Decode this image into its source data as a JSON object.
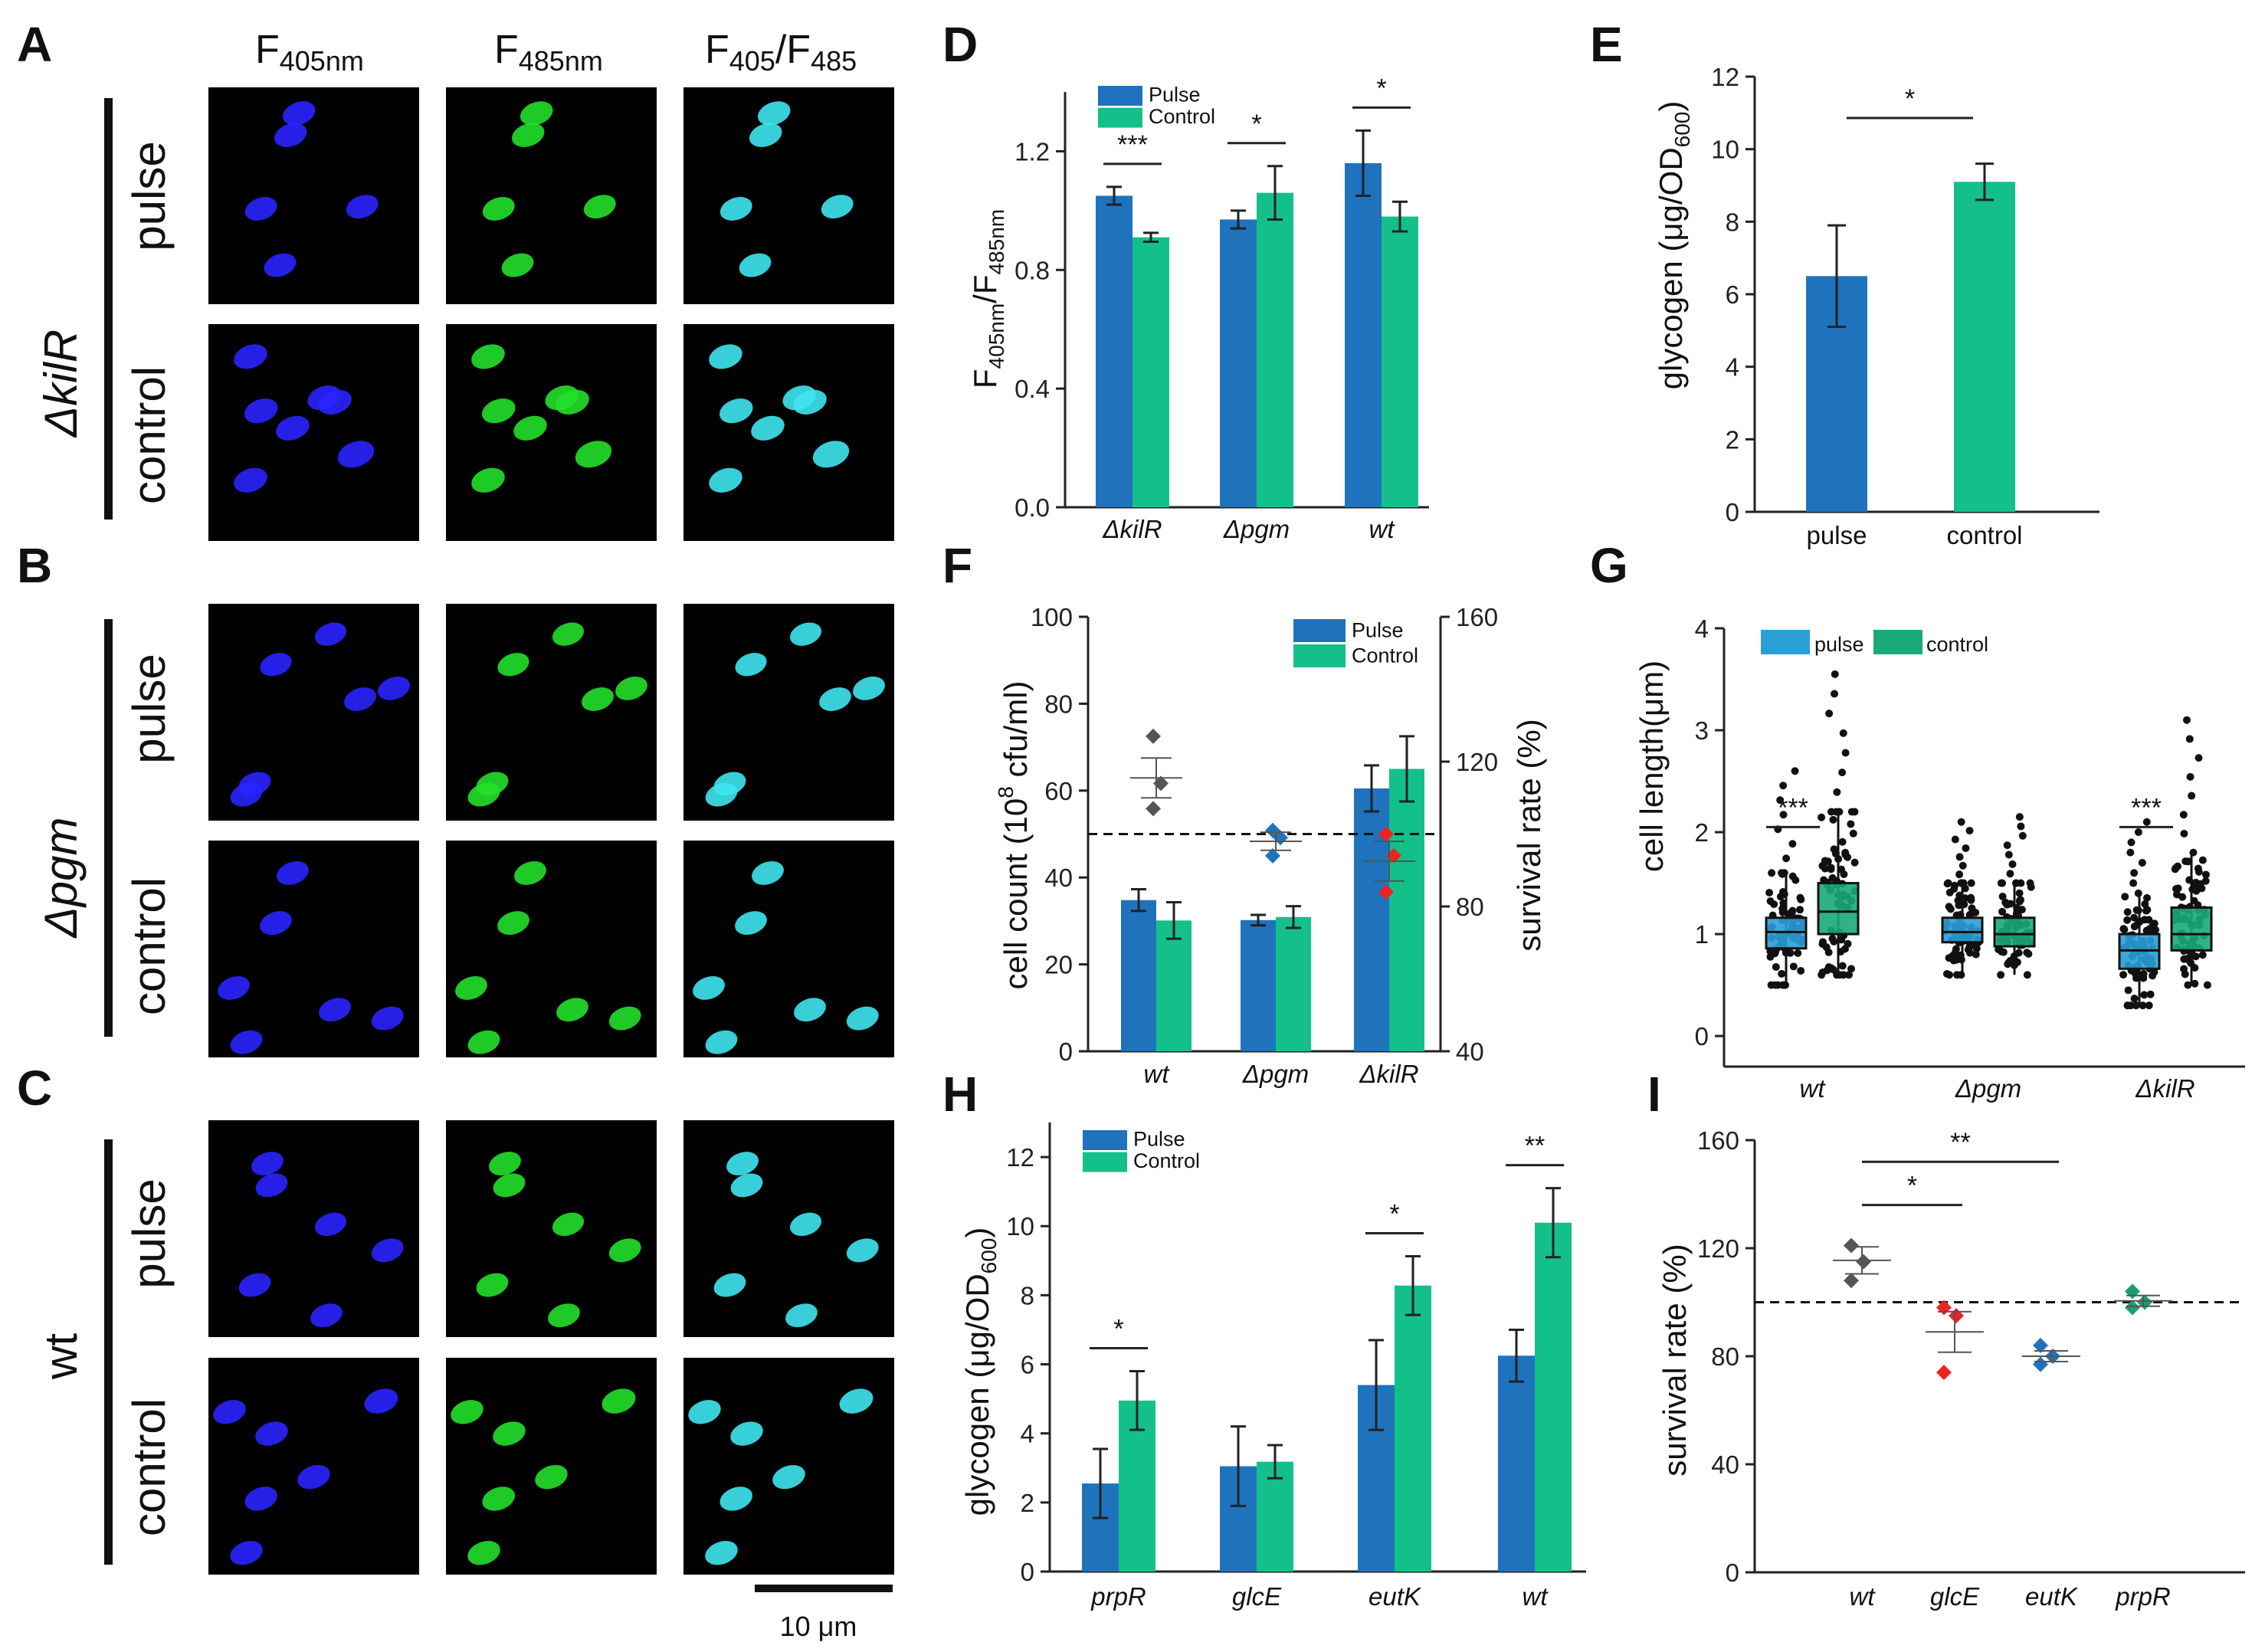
{
  "colors": {
    "pulse": "#1f73bd",
    "control": "#14c08a",
    "g_pulse": "#2a9fd6",
    "g_control": "#1aaa7a",
    "blue": "#2a24ff",
    "green": "#22e02a",
    "cyan": "#3ee6f0",
    "gray": "#555555",
    "red": "#ee2222",
    "teal": "#1aa070"
  },
  "micrograph": {
    "panel_labels": [
      "A",
      "B",
      "C"
    ],
    "columns": [
      "F",
      "F",
      "F",
      "/F"
    ],
    "col_sub": [
      "405nm",
      "485nm",
      "405",
      "485"
    ],
    "strains": [
      "ΔkilR",
      "Δpgm",
      "wt"
    ],
    "conditions": [
      "pulse",
      "control"
    ],
    "scale_bar": "10 μm"
  },
  "chart_data": [
    {
      "id": "D",
      "type": "bar",
      "panel_label": "D",
      "ylabel_main": "F",
      "ylabel_sub1": "405nm",
      "ylabel_slash": "/F",
      "ylabel_sub2": "485nm",
      "categories": [
        "ΔkilR",
        "Δpgm",
        "wt"
      ],
      "ylim": [
        0,
        1.4
      ],
      "yticks": [
        "0.0",
        "0.4",
        "0.8",
        "1.2"
      ],
      "ytick_values": [
        0,
        0.4,
        0.8,
        1.2
      ],
      "legend": [
        "Pulse",
        "Control"
      ],
      "series": [
        {
          "name": "Pulse",
          "values": [
            1.05,
            0.97,
            1.16
          ],
          "err": [
            0.03,
            0.03,
            0.11
          ]
        },
        {
          "name": "Control",
          "values": [
            0.91,
            1.06,
            0.98
          ],
          "err": [
            0.015,
            0.09,
            0.05
          ]
        }
      ],
      "significance": [
        "***",
        "*",
        "*"
      ]
    },
    {
      "id": "E",
      "type": "bar",
      "panel_label": "E",
      "ylabel_main": "glycogen (μg/OD",
      "ylabel_sub": "600",
      "ylabel_end": ")",
      "categories": [
        "pulse",
        "control"
      ],
      "ylim": [
        0,
        12
      ],
      "yticks": [
        "0",
        "2",
        "4",
        "6",
        "8",
        "10",
        "12"
      ],
      "ytick_values": [
        0,
        2,
        4,
        6,
        8,
        10,
        12
      ],
      "values": [
        6.5,
        9.1
      ],
      "err": [
        1.4,
        0.5
      ],
      "significance": [
        "*"
      ]
    },
    {
      "id": "F",
      "type": "bar",
      "panel_label": "F",
      "ylabel_left_a": "cell count (10",
      "ylabel_left_sup": "8",
      "ylabel_left_b": " cfu/ml)",
      "ylabel_right": "survival rate (%)",
      "categories": [
        "wt",
        "Δpgm",
        "ΔkilR"
      ],
      "ylim": [
        0,
        100
      ],
      "yticks": [
        "0",
        "20",
        "40",
        "60",
        "80",
        "100"
      ],
      "ytick_values": [
        0,
        20,
        40,
        60,
        80,
        100
      ],
      "y2lim": [
        40,
        160
      ],
      "y2ticks": [
        "40",
        "80",
        "120",
        "160"
      ],
      "y2tick_values": [
        40,
        80,
        120,
        160
      ],
      "legend": [
        "Pulse",
        "Control"
      ],
      "series": [
        {
          "name": "Pulse",
          "values": [
            34.8,
            30.2,
            60.5
          ],
          "err": [
            2.5,
            1.2,
            5.3
          ]
        },
        {
          "name": "Control",
          "values": [
            30.1,
            30.9,
            65.0
          ],
          "err": [
            4.2,
            2.5,
            7.5
          ]
        }
      ],
      "survival": [
        {
          "points": [
            127,
            114,
            107
          ],
          "mean": 115.5,
          "sem": 5.5
        },
        {
          "points": [
            101,
            99,
            94
          ],
          "mean": 98,
          "sem": 2.5
        },
        {
          "points": [
            100,
            94,
            84
          ],
          "mean": 92.5,
          "sem": 5.5
        }
      ],
      "reference_line": 100
    },
    {
      "id": "G",
      "type": "box",
      "panel_label": "G",
      "ylabel": "cell length(μm)",
      "categories": [
        "wt",
        "Δpgm",
        "ΔkilR"
      ],
      "ylim": [
        -0.3,
        4
      ],
      "yticks": [
        "0",
        "1",
        "2",
        "3",
        "4"
      ],
      "ytick_values": [
        0,
        1,
        2,
        3,
        4
      ],
      "legend": [
        "pulse",
        "control"
      ],
      "boxes": [
        [
          {
            "q1": 0.86,
            "med": 1.02,
            "q3": 1.16,
            "lo": 0.5,
            "hi": 1.6,
            "max": 2.6
          },
          {
            "q1": 1.0,
            "med": 1.22,
            "q3": 1.5,
            "lo": 0.6,
            "hi": 2.2,
            "max": 3.55
          }
        ],
        [
          {
            "q1": 0.92,
            "med": 1.02,
            "q3": 1.16,
            "lo": 0.6,
            "hi": 1.5,
            "max": 2.1
          },
          {
            "q1": 0.88,
            "med": 1.0,
            "q3": 1.16,
            "lo": 0.6,
            "hi": 1.5,
            "max": 2.15
          }
        ],
        [
          {
            "q1": 0.66,
            "med": 0.84,
            "q3": 1.0,
            "lo": 0.3,
            "hi": 1.4,
            "max": 2.1
          },
          {
            "q1": 0.84,
            "med": 1.0,
            "q3": 1.26,
            "lo": 0.5,
            "hi": 1.8,
            "max": 3.1
          }
        ]
      ],
      "significance": [
        "***",
        "",
        "***"
      ]
    },
    {
      "id": "H",
      "type": "bar",
      "panel_label": "H",
      "ylabel_main": "glycogen (μg/OD",
      "ylabel_sub": "600",
      "ylabel_end": ")",
      "categories": [
        "prpR",
        "glcE",
        "eutK",
        "wt"
      ],
      "ylim": [
        0,
        13
      ],
      "yticks": [
        "0",
        "2",
        "4",
        "6",
        "8",
        "10",
        "12"
      ],
      "ytick_values": [
        0,
        2,
        4,
        6,
        8,
        10,
        12
      ],
      "legend": [
        "Pulse",
        "Control"
      ],
      "series": [
        {
          "name": "Pulse",
          "values": [
            2.55,
            3.05,
            5.4,
            6.25
          ],
          "err": [
            1.0,
            1.15,
            1.3,
            0.75
          ]
        },
        {
          "name": "Control",
          "values": [
            4.95,
            3.18,
            8.28,
            10.1
          ],
          "err": [
            0.85,
            0.48,
            0.85,
            1.0
          ]
        }
      ],
      "significance": [
        "*",
        "",
        "*",
        "**"
      ]
    },
    {
      "id": "I",
      "type": "scatter",
      "panel_label": "I",
      "ylabel": "survival rate (%)",
      "categories": [
        "wt",
        "glcE",
        "eutK",
        "prpR"
      ],
      "ylim": [
        0,
        160
      ],
      "yticks": [
        "0",
        "40",
        "80",
        "120",
        "160"
      ],
      "ytick_values": [
        0,
        40,
        80,
        120,
        160
      ],
      "groups": [
        {
          "points": [
            121,
            115,
            108
          ],
          "mean": 115.5,
          "sem": 5
        },
        {
          "points": [
            98,
            95,
            74
          ],
          "mean": 89,
          "sem": 7.5
        },
        {
          "points": [
            84,
            80,
            77
          ],
          "mean": 80,
          "sem": 2
        },
        {
          "points": [
            104,
            100,
            98
          ],
          "mean": 100.5,
          "sem": 2
        }
      ],
      "reference_line": 100,
      "significance": [
        {
          "from": 0,
          "to": 1,
          "label": "*"
        },
        {
          "from": 0,
          "to": 2,
          "label": "**"
        }
      ]
    }
  ]
}
